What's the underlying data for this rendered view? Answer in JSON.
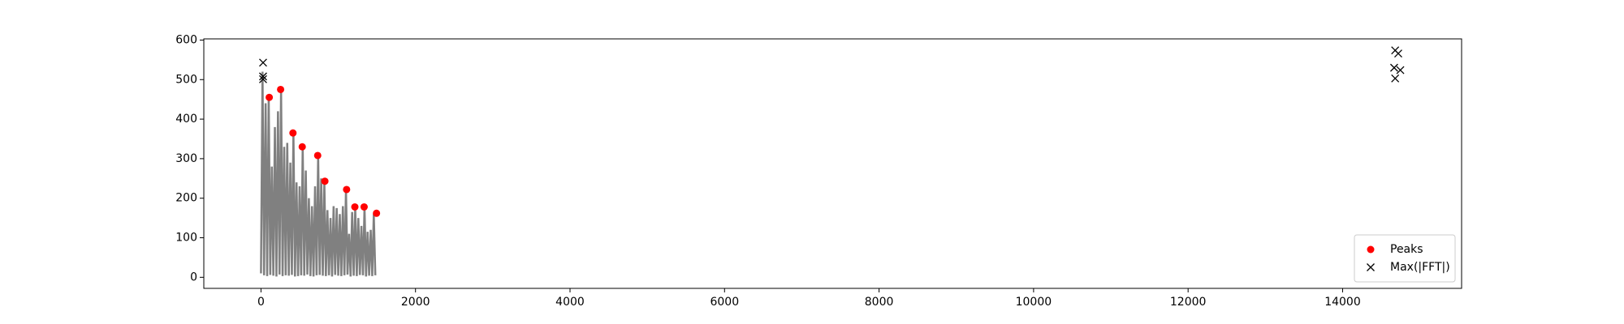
{
  "chart_data": {
    "type": "line",
    "series": [
      {
        "color": "#808080",
        "x": [
          0,
          20,
          40,
          60,
          80,
          100,
          120,
          140,
          160,
          180,
          200,
          220,
          240,
          260,
          280,
          300,
          320,
          340,
          360,
          380,
          400,
          420,
          440,
          460,
          480,
          500,
          520,
          540,
          560,
          580,
          600,
          620,
          640,
          660,
          680,
          700,
          720,
          740,
          760,
          780,
          800,
          820,
          840,
          860,
          880,
          900,
          920,
          940,
          960,
          980,
          1000,
          1020,
          1040,
          1060,
          1080,
          1100,
          1120,
          1140,
          1160,
          1180,
          1200,
          1220,
          1240,
          1260,
          1280,
          1300,
          1320,
          1340,
          1360,
          1380,
          1400,
          1420,
          1440,
          1460,
          1480
        ],
        "values": [
          10,
          520,
          5,
          440,
          3,
          455,
          6,
          280,
          4,
          380,
          2,
          420,
          7,
          475,
          3,
          330,
          5,
          340,
          4,
          290,
          6,
          365,
          2,
          240,
          3,
          230,
          5,
          330,
          4,
          270,
          7,
          200,
          3,
          180,
          2,
          230,
          5,
          308,
          6,
          250,
          4,
          243,
          3,
          170,
          5,
          150,
          2,
          180,
          6,
          175,
          4,
          160,
          3,
          180,
          5,
          222,
          7,
          110,
          2,
          165,
          4,
          178,
          3,
          150,
          6,
          130,
          5,
          178,
          2,
          115,
          4,
          120,
          3,
          160,
          5
        ]
      },
      {
        "name": "Peaks",
        "color": "#ff0000",
        "marker": "o",
        "x": [
          107,
          254,
          414,
          534,
          734,
          827,
          1108,
          1215,
          1335,
          1495
        ],
        "values": [
          455,
          475,
          365,
          330,
          308,
          243,
          222,
          178,
          178,
          162
        ]
      },
      {
        "name": "Max(|FFT|)",
        "color": "#000000",
        "marker": "x",
        "x": [
          27,
          27,
          27,
          14680,
          14720,
          14667,
          14747,
          14680
        ],
        "values": [
          543,
          508,
          501,
          574,
          566,
          530,
          524,
          503
        ]
      }
    ],
    "xlim": [
      -740,
      15540
    ],
    "xticks": [
      0,
      2000,
      4000,
      6000,
      8000,
      10000,
      12000,
      14000
    ],
    "ylim": [
      -28,
      603
    ],
    "yticks": [
      0,
      100,
      200,
      300,
      400,
      500,
      600
    ],
    "legend": "lower right"
  }
}
